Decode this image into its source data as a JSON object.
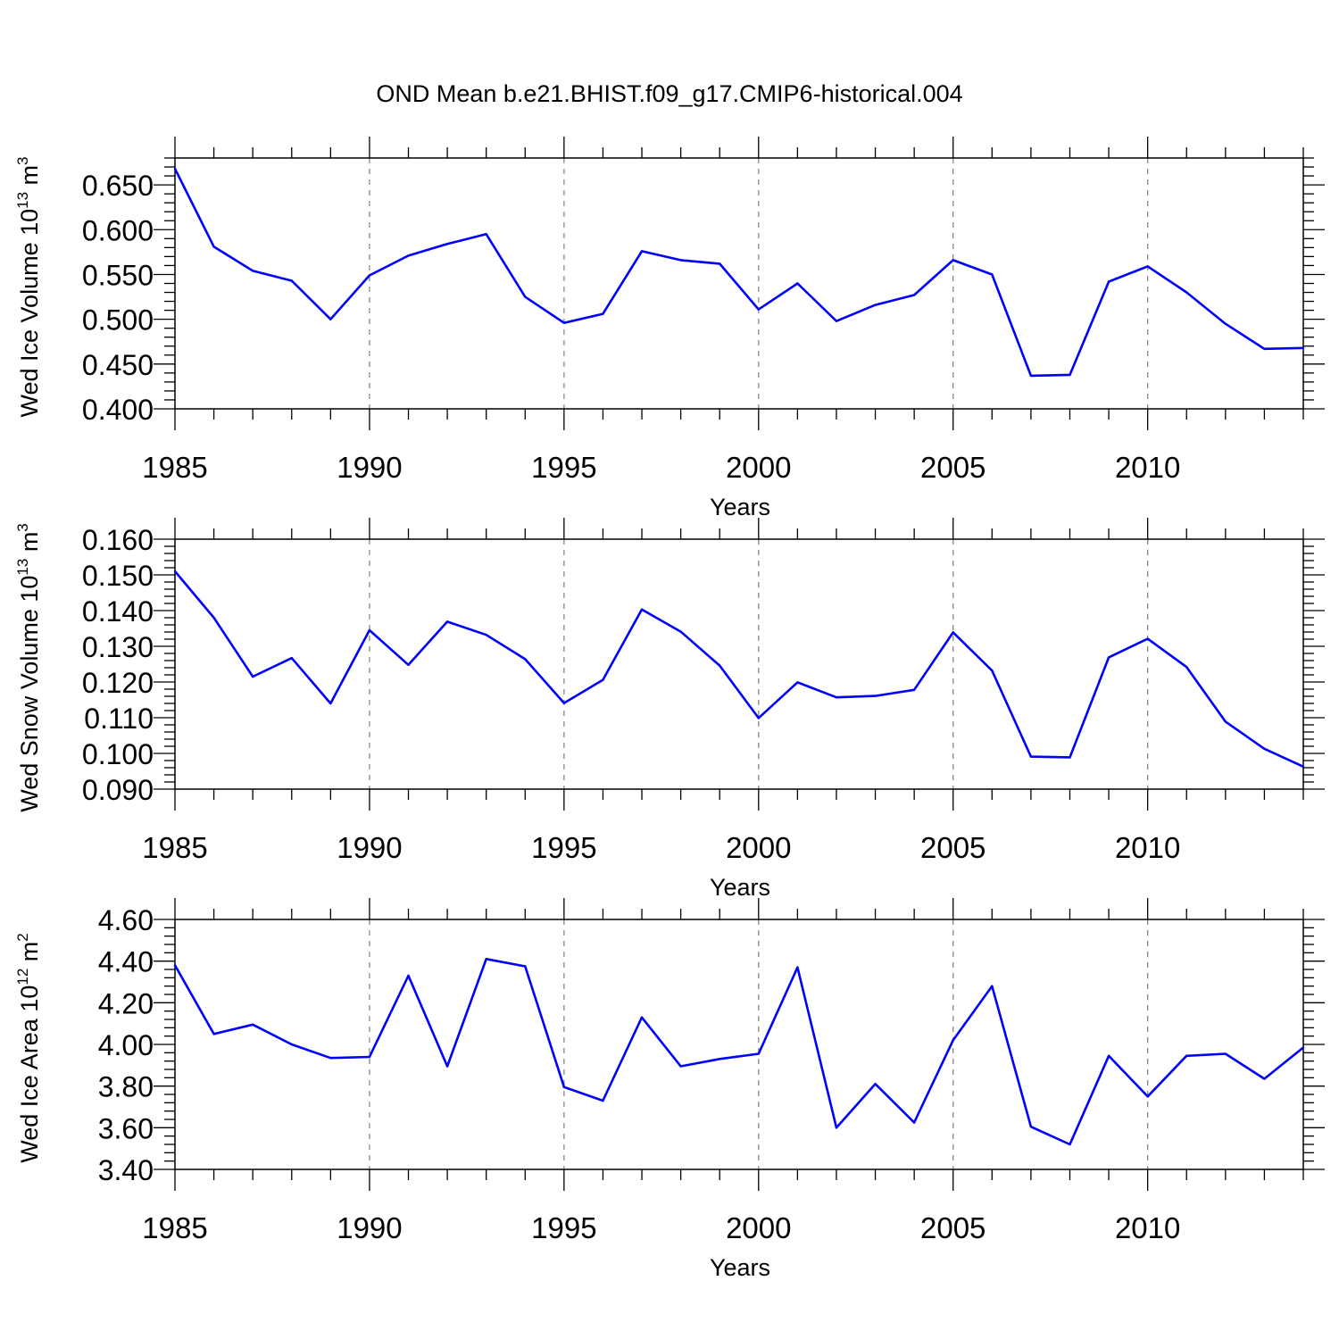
{
  "title": "OND Mean b.e21.BHIST.f09_g17.CMIP6-historical.004",
  "line_color": "#0000ff",
  "chart_data": [
    {
      "type": "line",
      "ylabel_main": "Wed Ice Volume 10",
      "ylabel_exp": "13",
      "ylabel_unit": " m",
      "ylabel_unit_exp": "3",
      "xlabel": "Years",
      "xlim": [
        1985,
        2014
      ],
      "ylim": [
        0.4,
        0.68
      ],
      "xticks": [
        1985,
        1990,
        1995,
        2000,
        2005,
        2010
      ],
      "yticks": [
        "0.400",
        "0.450",
        "0.500",
        "0.550",
        "0.600",
        "0.650"
      ],
      "x": [
        1985,
        1986,
        1987,
        1988,
        1989,
        1990,
        1991,
        1992,
        1993,
        1994,
        1995,
        1996,
        1997,
        1998,
        1999,
        2000,
        2001,
        2002,
        2003,
        2004,
        2005,
        2006,
        2007,
        2008,
        2009,
        2010,
        2011,
        2012,
        2013,
        2014
      ],
      "y": [
        0.668,
        0.581,
        0.554,
        0.543,
        0.5,
        0.549,
        0.571,
        0.584,
        0.595,
        0.525,
        0.496,
        0.506,
        0.576,
        0.566,
        0.562,
        0.511,
        0.54,
        0.498,
        0.516,
        0.527,
        0.566,
        0.55,
        0.437,
        0.438,
        0.542,
        0.559,
        0.53,
        0.495,
        0.467,
        0.468
      ]
    },
    {
      "type": "line",
      "ylabel_main": "Wed Snow Volume 10",
      "ylabel_exp": "13",
      "ylabel_unit": " m",
      "ylabel_unit_exp": "3",
      "xlabel": "Years",
      "xlim": [
        1985,
        2014
      ],
      "ylim": [
        0.09,
        0.16
      ],
      "xticks": [
        1985,
        1990,
        1995,
        2000,
        2005,
        2010
      ],
      "yticks": [
        "0.090",
        "0.100",
        "0.110",
        "0.120",
        "0.130",
        "0.140",
        "0.150",
        "0.160"
      ],
      "x": [
        1985,
        1986,
        1987,
        1988,
        1989,
        1990,
        1991,
        1992,
        1993,
        1994,
        1995,
        1996,
        1997,
        1998,
        1999,
        2000,
        2001,
        2002,
        2003,
        2004,
        2005,
        2006,
        2007,
        2008,
        2009,
        2010,
        2011,
        2012,
        2013,
        2014
      ],
      "y": [
        0.151,
        0.138,
        0.1215,
        0.1267,
        0.114,
        0.1345,
        0.1248,
        0.1369,
        0.1332,
        0.1264,
        0.1141,
        0.1206,
        0.1403,
        0.1341,
        0.1246,
        0.1099,
        0.1199,
        0.1157,
        0.1161,
        0.1178,
        0.1339,
        0.1232,
        0.0991,
        0.0989,
        0.1269,
        0.1321,
        0.1242,
        0.1089,
        0.1013,
        0.0963
      ]
    },
    {
      "type": "line",
      "ylabel_main": "Wed Ice Area 10",
      "ylabel_exp": "12",
      "ylabel_unit": " m",
      "ylabel_unit_exp": "2",
      "xlabel": "Years",
      "xlim": [
        1985,
        2014
      ],
      "ylim": [
        3.4,
        4.6
      ],
      "xticks": [
        1985,
        1990,
        1995,
        2000,
        2005,
        2010
      ],
      "yticks": [
        "3.40",
        "3.60",
        "3.80",
        "4.00",
        "4.20",
        "4.40",
        "4.60"
      ],
      "x": [
        1985,
        1986,
        1987,
        1988,
        1989,
        1990,
        1991,
        1992,
        1993,
        1994,
        1995,
        1996,
        1997,
        1998,
        1999,
        2000,
        2001,
        2002,
        2003,
        2004,
        2005,
        2006,
        2007,
        2008,
        2009,
        2010,
        2011,
        2012,
        2013,
        2014
      ],
      "y": [
        4.38,
        4.05,
        4.095,
        4.0,
        3.935,
        3.94,
        4.33,
        3.895,
        4.41,
        4.375,
        3.795,
        3.73,
        4.13,
        3.895,
        3.93,
        3.955,
        4.37,
        3.6,
        3.81,
        3.625,
        4.02,
        4.28,
        3.605,
        3.52,
        3.945,
        3.75,
        3.945,
        3.955,
        3.835,
        3.985
      ]
    }
  ]
}
